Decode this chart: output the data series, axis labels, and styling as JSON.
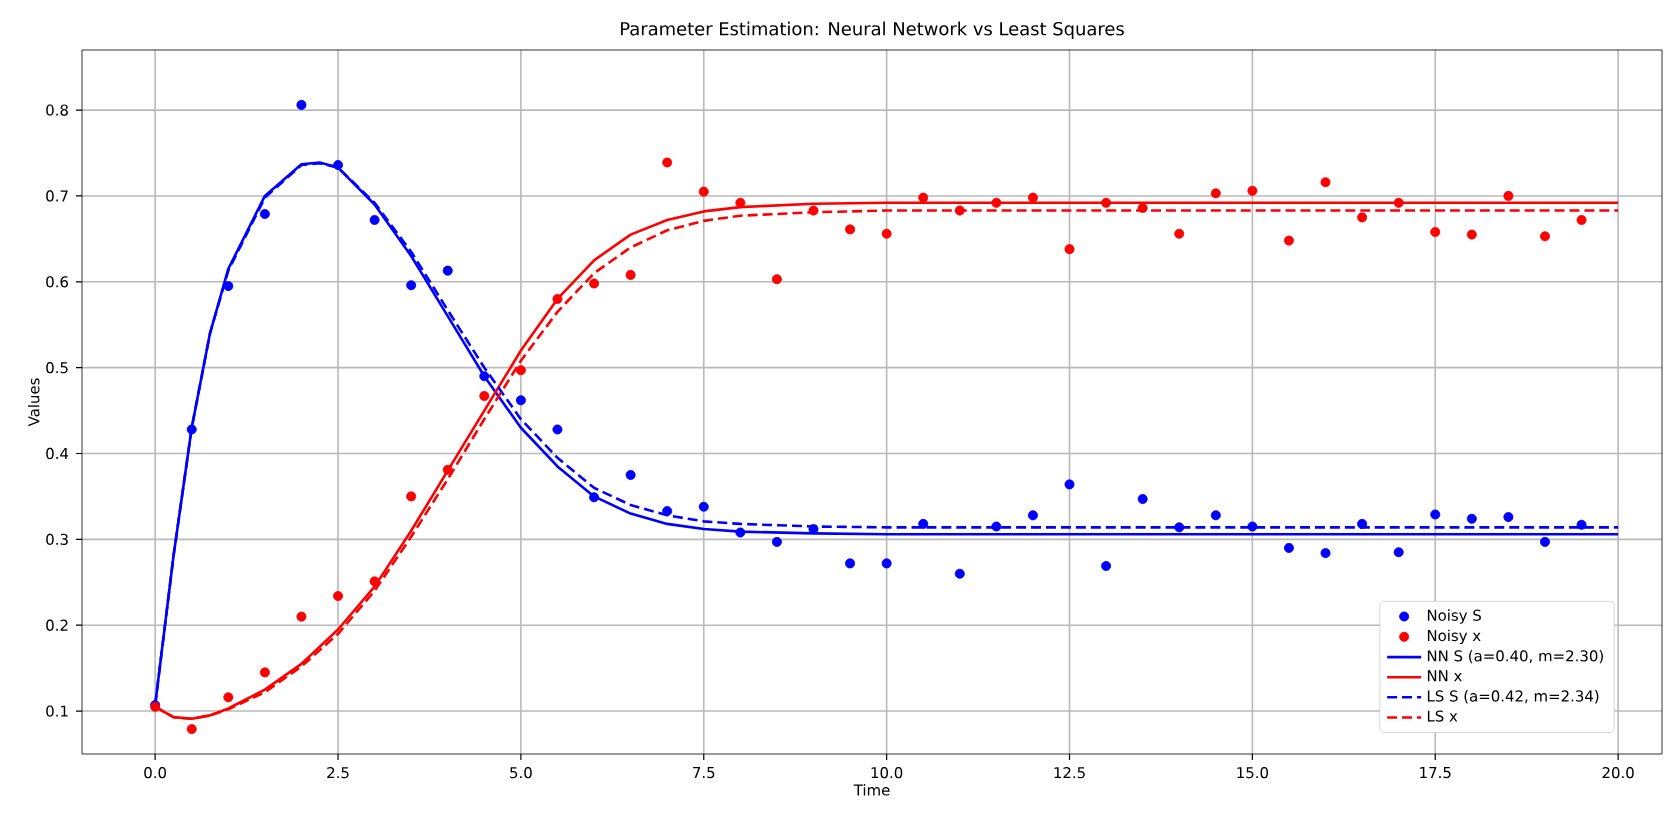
{
  "chart_data": {
    "type": "scatter",
    "title": "Parameter Estimation: Neural Network vs Least Squares",
    "xlabel": "Time",
    "ylabel": "Values",
    "xlim": [
      -1,
      20.6
    ],
    "ylim": [
      0.05,
      0.87
    ],
    "xticks": [
      {
        "value": 0,
        "label": "0.0"
      },
      {
        "value": 2.5,
        "label": "2.5"
      },
      {
        "value": 5,
        "label": "5.0"
      },
      {
        "value": 7.5,
        "label": "7.5"
      },
      {
        "value": 10,
        "label": "10.0"
      },
      {
        "value": 12.5,
        "label": "12.5"
      },
      {
        "value": 15,
        "label": "15.0"
      },
      {
        "value": 17.5,
        "label": "17.5"
      },
      {
        "value": 20,
        "label": "20.0"
      }
    ],
    "yticks": [
      0.1,
      0.2,
      0.3,
      0.4,
      0.5,
      0.6,
      0.7,
      0.8
    ],
    "grid": true,
    "legend": "bottom right",
    "series": [
      {
        "name": "Noisy S",
        "type": "scatter",
        "marker": "circle",
        "color": "#0000ff",
        "x": [
          0,
          0.5,
          1,
          1.5,
          2,
          2.5,
          3,
          3.5,
          4,
          4.5,
          5,
          5.5,
          6,
          6.5,
          7,
          7.5,
          8,
          8.5,
          9,
          9.5,
          10,
          10.5,
          11,
          11.5,
          12,
          12.5,
          13,
          13.5,
          14,
          14.5,
          15,
          15.5,
          16,
          16.5,
          17,
          17.5,
          18,
          18.5,
          19,
          19.5
        ],
        "values": [
          0.107,
          0.428,
          0.595,
          0.679,
          0.806,
          0.736,
          0.672,
          0.596,
          0.613,
          0.49,
          0.462,
          0.428,
          0.349,
          0.375,
          0.333,
          0.338,
          0.308,
          0.297,
          0.312,
          0.272,
          0.272,
          0.318,
          0.26,
          0.315,
          0.328,
          0.364,
          0.269,
          0.347,
          0.314,
          0.328,
          0.315,
          0.29,
          0.284,
          0.318,
          0.285,
          0.329,
          0.324,
          0.326,
          0.297,
          0.317
        ]
      },
      {
        "name": "Noisy x",
        "type": "scatter",
        "marker": "circle",
        "color": "#ff0000",
        "x": [
          0,
          0.5,
          1,
          1.5,
          2,
          2.5,
          3,
          3.5,
          4,
          4.5,
          5,
          5.5,
          6,
          6.5,
          7,
          7.5,
          8,
          8.5,
          9,
          9.5,
          10,
          10.5,
          11,
          11.5,
          12,
          12.5,
          13,
          13.5,
          14,
          14.5,
          15,
          15.5,
          16,
          16.5,
          17,
          17.5,
          18,
          18.5,
          19,
          19.5
        ],
        "values": [
          0.105,
          0.079,
          0.116,
          0.145,
          0.21,
          0.234,
          0.251,
          0.35,
          0.381,
          0.467,
          0.497,
          0.58,
          0.598,
          0.608,
          0.739,
          0.705,
          0.692,
          0.603,
          0.683,
          0.661,
          0.656,
          0.698,
          0.683,
          0.692,
          0.698,
          0.638,
          0.692,
          0.686,
          0.656,
          0.703,
          0.706,
          0.648,
          0.716,
          0.675,
          0.692,
          0.658,
          0.655,
          0.7,
          0.653,
          0.672
        ]
      },
      {
        "name": "NN S (a=0.40, m=2.30)",
        "type": "line",
        "marker": "none",
        "line_style": "solid",
        "color": "#0000ff",
        "x": [
          0,
          0.25,
          0.5,
          0.75,
          1,
          1.5,
          2,
          2.25,
          2.5,
          3,
          3.5,
          4,
          4.5,
          5,
          5.5,
          6,
          6.5,
          7,
          7.5,
          8,
          9,
          10,
          12,
          15,
          20
        ],
        "values": [
          0.107,
          0.28,
          0.43,
          0.54,
          0.615,
          0.7,
          0.737,
          0.739,
          0.733,
          0.69,
          0.63,
          0.56,
          0.49,
          0.43,
          0.385,
          0.35,
          0.33,
          0.318,
          0.312,
          0.309,
          0.307,
          0.306,
          0.306,
          0.306,
          0.306
        ]
      },
      {
        "name": "NN x",
        "type": "line",
        "marker": "none",
        "line_style": "solid",
        "color": "#ff0000",
        "x": [
          0,
          0.25,
          0.5,
          0.75,
          1,
          1.5,
          2,
          2.5,
          3,
          3.5,
          4,
          4.5,
          5,
          5.5,
          6,
          6.5,
          7,
          7.5,
          8,
          9,
          10,
          12,
          15,
          20
        ],
        "values": [
          0.105,
          0.093,
          0.091,
          0.095,
          0.103,
          0.125,
          0.155,
          0.195,
          0.245,
          0.31,
          0.38,
          0.45,
          0.52,
          0.58,
          0.625,
          0.655,
          0.672,
          0.682,
          0.687,
          0.691,
          0.692,
          0.692,
          0.692,
          0.692
        ]
      },
      {
        "name": "LS S (a=0.42, m=2.34)",
        "type": "line",
        "marker": "none",
        "line_style": "dashed",
        "color": "#0000ff",
        "x": [
          0,
          0.25,
          0.5,
          0.75,
          1,
          1.5,
          2,
          2.25,
          2.5,
          3,
          3.5,
          4,
          4.5,
          5,
          5.5,
          6,
          6.5,
          7,
          7.5,
          8,
          9,
          10,
          12,
          15,
          20
        ],
        "values": [
          0.107,
          0.28,
          0.43,
          0.54,
          0.613,
          0.698,
          0.736,
          0.738,
          0.733,
          0.692,
          0.635,
          0.567,
          0.5,
          0.44,
          0.395,
          0.36,
          0.34,
          0.328,
          0.321,
          0.318,
          0.315,
          0.314,
          0.314,
          0.314,
          0.314
        ]
      },
      {
        "name": "LS x",
        "type": "line",
        "marker": "none",
        "line_style": "dashed",
        "color": "#ff0000",
        "x": [
          0,
          0.25,
          0.5,
          0.75,
          1,
          1.5,
          2,
          2.5,
          3,
          3.5,
          4,
          4.5,
          5,
          5.5,
          6,
          6.5,
          7,
          7.5,
          8,
          9,
          10,
          12,
          15,
          20
        ],
        "values": [
          0.105,
          0.093,
          0.091,
          0.095,
          0.102,
          0.122,
          0.152,
          0.19,
          0.24,
          0.303,
          0.37,
          0.44,
          0.508,
          0.565,
          0.61,
          0.64,
          0.66,
          0.671,
          0.677,
          0.681,
          0.683,
          0.683,
          0.683,
          0.683
        ]
      }
    ]
  }
}
